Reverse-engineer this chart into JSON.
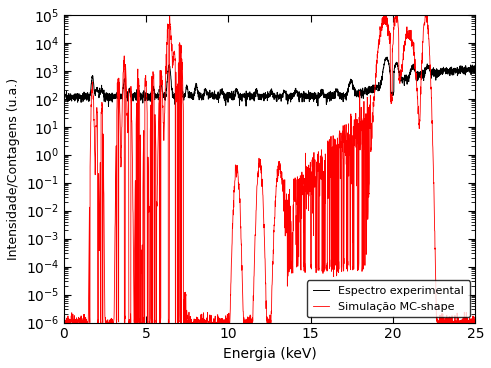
{
  "title": "",
  "xlabel": "Energia (keV)",
  "ylabel": "Intensidade/Contagens (u.a.)",
  "xlim": [
    0,
    25
  ],
  "ylim_log": [
    -6,
    5
  ],
  "legend_labels": [
    "Espectro experimental",
    "Simulação MC-shape"
  ],
  "legend_colors": [
    "black",
    "red"
  ],
  "legend_loc": "lower right",
  "figsize": [
    4.91,
    3.68
  ],
  "dpi": 100,
  "background_color": "#ffffff",
  "grid": false,
  "linewidth_black": 0.7,
  "linewidth_red": 0.6,
  "seed": 42
}
